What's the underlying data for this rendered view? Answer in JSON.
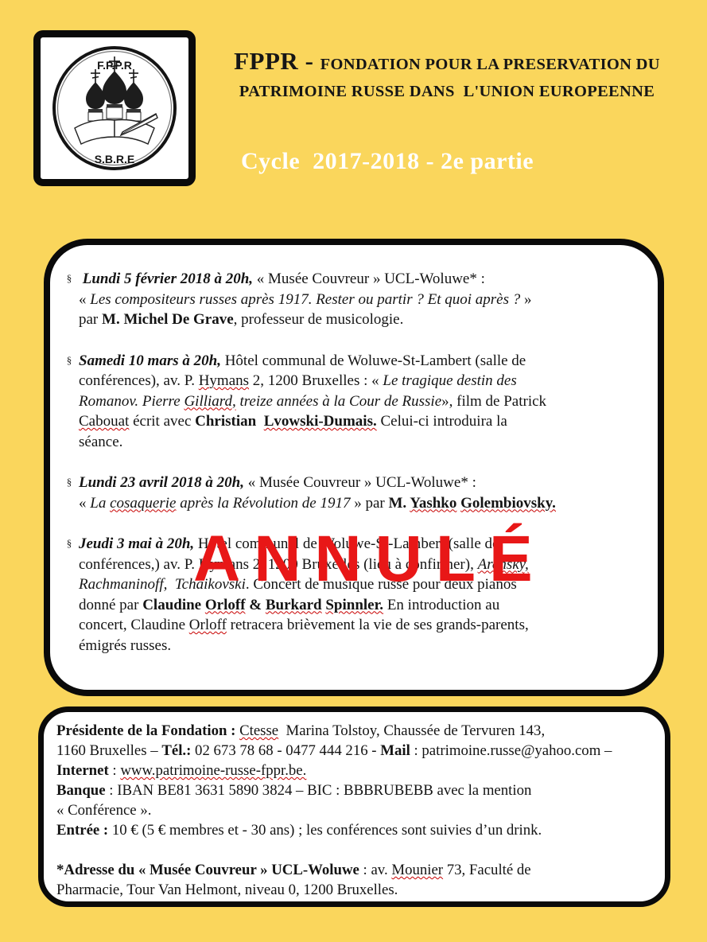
{
  "page": {
    "background": "#FAD65C",
    "text_color": "#141414"
  },
  "logo": {
    "top_label": "F.P.P.R",
    "bottom_label": "S.B.R.E"
  },
  "header": {
    "title_big": "FPPR - ",
    "title_line1_rest": "FONDATION POUR LA PRESERVATION DU",
    "title_line2": "PATRIMOINE RUSSE DANS  L'UNION EUROPEENNE",
    "subtitle": "Cycle  2017-2018 - 2e partie"
  },
  "events": {
    "marker": "§",
    "items": [
      {
        "segments": [
          {
            "t": " Lundi 5 février 2018 à 20h,",
            "b": true,
            "i": true
          },
          {
            "t": " « Musée Couvreur » UCL-Woluwe* :"
          },
          {
            "br": true
          },
          {
            "t": "« "
          },
          {
            "t": "Les compositeurs russes après 1917. Rester ou partir ? Et quoi après ?",
            "i": true
          },
          {
            "t": " »"
          },
          {
            "br": true
          },
          {
            "t": "par "
          },
          {
            "t": "M. Michel De Grave",
            "b": true
          },
          {
            "t": ", professeur de musicologie."
          }
        ]
      },
      {
        "segments": [
          {
            "t": "Samedi 10 mars à 20h,",
            "b": true,
            "i": true
          },
          {
            "t": " Hôtel communal de Woluwe-St-Lambert (salle de"
          },
          {
            "br": true
          },
          {
            "t": "conférences), av. P. "
          },
          {
            "t": "Hymans",
            "sq": true
          },
          {
            "t": " 2, 1200 Bruxelles : « "
          },
          {
            "t": "Le tragique destin des",
            "i": true
          },
          {
            "br": true
          },
          {
            "t": "Romanov. Pierre ",
            "i": true
          },
          {
            "t": "Gilliard,",
            "i": true,
            "sq": true
          },
          {
            "t": " treize années à la Cour de Russie",
            "i": true
          },
          {
            "t": "», film de Patrick"
          },
          {
            "br": true
          },
          {
            "t": "Cabouat",
            "sq": true
          },
          {
            "t": " écrit avec "
          },
          {
            "t": "Christian  ",
            "b": true
          },
          {
            "t": "Lvowski-Dumais.",
            "b": true,
            "sq": true
          },
          {
            "t": " Celui-ci introduira la"
          },
          {
            "br": true
          },
          {
            "t": "séance."
          }
        ]
      },
      {
        "segments": [
          {
            "t": "Lundi 23 avril 2018 à 20h,",
            "b": true,
            "i": true
          },
          {
            "t": " « Musée Couvreur » UCL-Woluwe* :"
          },
          {
            "br": true
          },
          {
            "t": "« "
          },
          {
            "t": "La ",
            "i": true
          },
          {
            "t": "cosaquerie",
            "i": true,
            "sq": true
          },
          {
            "t": " après la Révolution de 1917",
            "i": true
          },
          {
            "t": " » par "
          },
          {
            "t": "M. ",
            "b": true
          },
          {
            "t": "Yashko",
            "b": true,
            "sq": true
          },
          {
            "t": " ",
            "b": true
          },
          {
            "t": "Golembiovsky.",
            "b": true,
            "sq": true
          }
        ]
      },
      {
        "segments": [
          {
            "t": "Jeudi 3 mai à 20h,",
            "b": true,
            "i": true
          },
          {
            "t": " Hôtel communal de Woluwe-St-Lambert (salle de"
          },
          {
            "br": true
          },
          {
            "t": "conférences,) av. P. Hymans 2, 1200 Bruxelles (lieu à confirmer), "
          },
          {
            "t": "Arensky,",
            "i": true,
            "sq": true
          },
          {
            "br": true
          },
          {
            "t": "Rachmaninoff,  Tchaikovski",
            "i": true
          },
          {
            "t": ". Concert de musique russe pour deux pianos"
          },
          {
            "br": true
          },
          {
            "t": "donné par "
          },
          {
            "t": "Claudine ",
            "b": true
          },
          {
            "t": "Orloff",
            "b": true,
            "sq": true
          },
          {
            "t": " & ",
            "b": true
          },
          {
            "t": "Burkard",
            "b": true,
            "sq": true
          },
          {
            "t": " ",
            "b": true
          },
          {
            "t": "Spinnler.",
            "b": true,
            "sq": true
          },
          {
            "t": " En introduction au"
          },
          {
            "br": true
          },
          {
            "t": "concert, Claudine "
          },
          {
            "t": "Orloff",
            "sq": true
          },
          {
            "t": " retracera brièvement la vie de ses grands-parents,"
          },
          {
            "br": true
          },
          {
            "t": "émigrés russes."
          }
        ]
      }
    ]
  },
  "stamp": {
    "label": "ANNULÉ",
    "color": "#E81717"
  },
  "footer": {
    "segments": [
      {
        "t": "Présidente de la Fondation :",
        "b": true
      },
      {
        "t": " "
      },
      {
        "t": "Ctesse",
        "sq": true
      },
      {
        "t": "  Marina Tolstoy, Chaussée de Tervuren 143,"
      },
      {
        "br": true
      },
      {
        "t": "1160 Bruxelles – "
      },
      {
        "t": "Tél.:",
        "b": true
      },
      {
        "t": " 02 673 78 68 - 0477 444 216 - "
      },
      {
        "t": "Mail",
        "b": true
      },
      {
        "t": " : patrimoine.russe@yahoo.com –"
      },
      {
        "br": true
      },
      {
        "t": "Internet",
        "b": true
      },
      {
        "t": " : "
      },
      {
        "t": "www.patrimoine-russe-fppr.be.",
        "sq": true
      },
      {
        "br": true
      },
      {
        "t": "Banque",
        "b": true
      },
      {
        "t": " : IBAN BE81 3631 5890 3824 – BIC : BBBRUBEBB avec la mention"
      },
      {
        "br": true
      },
      {
        "t": "« Conférence »."
      },
      {
        "br": true
      },
      {
        "t": "Entrée :",
        "b": true
      },
      {
        "t": " 10 € (5 € membres et - 30 ans) ; les conférences sont suivies d’un drink."
      },
      {
        "br": true
      },
      {
        "br": true
      },
      {
        "t": "*Adresse du « Musée Couvreur » UCL-Woluwe",
        "b": true
      },
      {
        "t": " : av. "
      },
      {
        "t": "Mounier",
        "sq": true
      },
      {
        "t": " 73, Faculté de"
      },
      {
        "br": true
      },
      {
        "t": "Pharmacie, Tour Van Helmont, niveau 0, 1200 Bruxelles."
      }
    ]
  }
}
